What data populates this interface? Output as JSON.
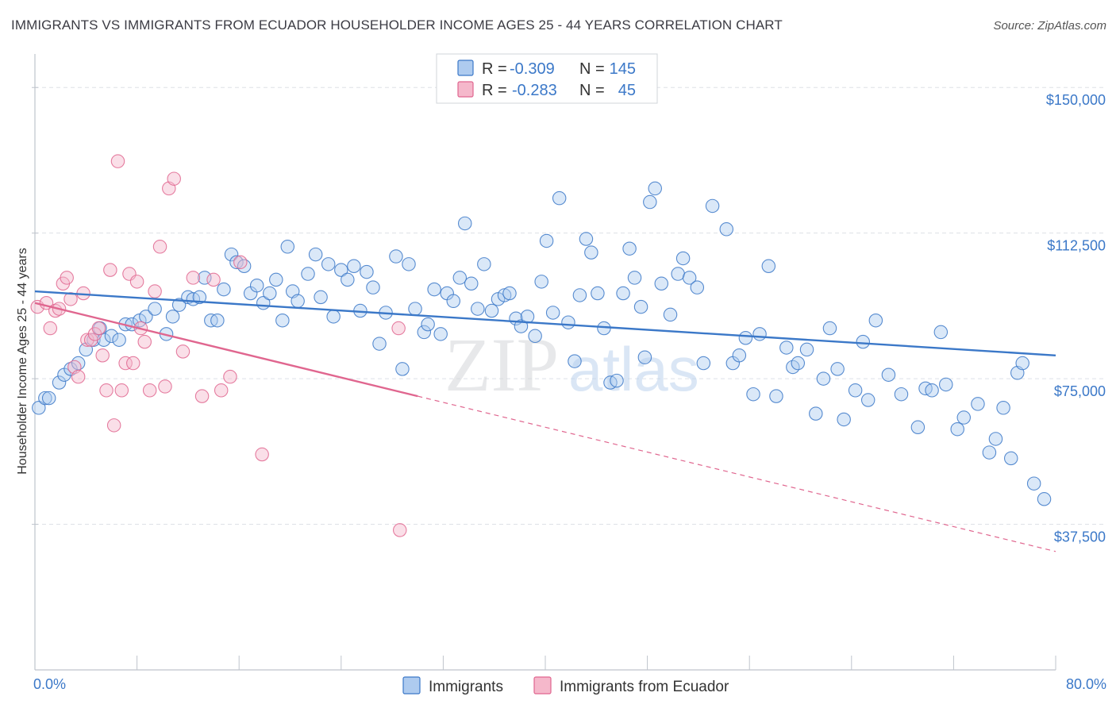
{
  "header": {
    "title": "IMMIGRANTS VS IMMIGRANTS FROM ECUADOR HOUSEHOLDER INCOME AGES 25 - 44 YEARS CORRELATION CHART",
    "source": "Source: ZipAtlas.com"
  },
  "watermark": {
    "zip": "ZIP",
    "atlas": "atlas"
  },
  "colors": {
    "blue": "#3b78c8",
    "blue_fill": "#aecbef",
    "pink": "#e0668f",
    "pink_fill": "#f5b8cb",
    "grid": "#dde1e6",
    "axis": "#bfc4cc"
  },
  "chart_data": {
    "type": "scatter",
    "title": "IMMIGRANTS VS IMMIGRANTS FROM ECUADOR HOUSEHOLDER INCOME AGES 25 - 44 YEARS CORRELATION CHART",
    "xlabel": "",
    "ylabel": "Householder Income Ages 25 - 44 years",
    "xlim": [
      0,
      80
    ],
    "ylim": [
      0,
      157000
    ],
    "x_tick_labels": [
      "0.0%",
      "80.0%"
    ],
    "y_ticks": [
      37500,
      75000,
      112500,
      150000
    ],
    "y_tick_labels": [
      "$37,500",
      "$75,000",
      "$112,500",
      "$150,000"
    ],
    "grid": true,
    "legend_position": "top-center",
    "stats": [
      {
        "r_label": "R =",
        "r": "-0.309",
        "n_label": "N =",
        "n": "145"
      },
      {
        "r_label": "R =",
        "r": "-0.283",
        "n_label": "N =",
        "n": "45"
      }
    ],
    "series": [
      {
        "name": "Immigrants",
        "color": "#3b78c8",
        "trend": {
          "x": [
            0,
            80
          ],
          "y": [
            97500,
            81000
          ],
          "dashed_to": null
        },
        "points": [
          [
            0.3,
            67500
          ],
          [
            0.8,
            70000
          ],
          [
            1.1,
            70000
          ],
          [
            1.9,
            74000
          ],
          [
            2.3,
            76000
          ],
          [
            2.8,
            77500
          ],
          [
            3.4,
            79000
          ],
          [
            4.0,
            82500
          ],
          [
            4.6,
            85000
          ],
          [
            5.1,
            88000
          ],
          [
            5.4,
            85000
          ],
          [
            6.0,
            86000
          ],
          [
            6.6,
            85000
          ],
          [
            7.1,
            89000
          ],
          [
            7.6,
            89000
          ],
          [
            8.2,
            90000
          ],
          [
            8.7,
            91000
          ],
          [
            9.4,
            93000
          ],
          [
            10.3,
            86500
          ],
          [
            10.8,
            91000
          ],
          [
            11.3,
            94000
          ],
          [
            12.0,
            96000
          ],
          [
            12.4,
            95500
          ],
          [
            12.9,
            96000
          ],
          [
            13.3,
            101000
          ],
          [
            13.8,
            90000
          ],
          [
            14.3,
            90000
          ],
          [
            14.8,
            98000
          ],
          [
            15.4,
            107000
          ],
          [
            15.8,
            105000
          ],
          [
            16.4,
            104000
          ],
          [
            16.9,
            97000
          ],
          [
            17.4,
            99000
          ],
          [
            17.9,
            94500
          ],
          [
            18.4,
            97000
          ],
          [
            18.9,
            100500
          ],
          [
            19.4,
            90000
          ],
          [
            19.8,
            109000
          ],
          [
            20.2,
            97500
          ],
          [
            20.6,
            95000
          ],
          [
            21.4,
            102000
          ],
          [
            22.0,
            107000
          ],
          [
            22.4,
            96000
          ],
          [
            23.0,
            104500
          ],
          [
            23.4,
            91000
          ],
          [
            24.0,
            103000
          ],
          [
            24.5,
            100500
          ],
          [
            25.0,
            104000
          ],
          [
            25.5,
            92500
          ],
          [
            26.0,
            102500
          ],
          [
            26.5,
            98500
          ],
          [
            27.0,
            84000
          ],
          [
            27.5,
            92000
          ],
          [
            28.3,
            106500
          ],
          [
            28.8,
            77500
          ],
          [
            29.3,
            104500
          ],
          [
            29.8,
            93000
          ],
          [
            30.5,
            87000
          ],
          [
            30.8,
            89000
          ],
          [
            31.3,
            98000
          ],
          [
            31.8,
            86500
          ],
          [
            32.3,
            97000
          ],
          [
            32.8,
            95000
          ],
          [
            33.3,
            101000
          ],
          [
            33.7,
            115000
          ],
          [
            34.2,
            99500
          ],
          [
            34.7,
            93000
          ],
          [
            35.2,
            104500
          ],
          [
            35.8,
            92500
          ],
          [
            36.3,
            95500
          ],
          [
            36.8,
            96500
          ],
          [
            37.2,
            97000
          ],
          [
            37.7,
            90500
          ],
          [
            38.1,
            88500
          ],
          [
            38.6,
            91000
          ],
          [
            39.2,
            86000
          ],
          [
            39.7,
            100000
          ],
          [
            40.1,
            110500
          ],
          [
            40.6,
            92000
          ],
          [
            41.1,
            121500
          ],
          [
            41.8,
            89500
          ],
          [
            42.3,
            79500
          ],
          [
            42.7,
            96500
          ],
          [
            43.2,
            111000
          ],
          [
            43.6,
            107500
          ],
          [
            44.1,
            97000
          ],
          [
            44.6,
            88000
          ],
          [
            45.1,
            74000
          ],
          [
            45.6,
            74500
          ],
          [
            46.1,
            97000
          ],
          [
            46.6,
            108500
          ],
          [
            47.0,
            101000
          ],
          [
            47.5,
            93500
          ],
          [
            47.8,
            80500
          ],
          [
            48.2,
            120500
          ],
          [
            48.6,
            124000
          ],
          [
            49.1,
            99500
          ],
          [
            49.8,
            91500
          ],
          [
            50.4,
            102000
          ],
          [
            50.8,
            106000
          ],
          [
            51.3,
            101000
          ],
          [
            51.9,
            98500
          ],
          [
            52.4,
            79000
          ],
          [
            53.1,
            119500
          ],
          [
            54.2,
            113500
          ],
          [
            54.7,
            79000
          ],
          [
            55.2,
            81000
          ],
          [
            55.7,
            85500
          ],
          [
            56.3,
            71000
          ],
          [
            56.8,
            86500
          ],
          [
            57.5,
            104000
          ],
          [
            58.1,
            70500
          ],
          [
            58.9,
            83000
          ],
          [
            59.4,
            78000
          ],
          [
            59.8,
            79000
          ],
          [
            60.5,
            82500
          ],
          [
            61.2,
            66000
          ],
          [
            61.8,
            75000
          ],
          [
            62.3,
            88000
          ],
          [
            62.9,
            77500
          ],
          [
            63.4,
            64500
          ],
          [
            64.3,
            72000
          ],
          [
            64.9,
            84500
          ],
          [
            65.3,
            69500
          ],
          [
            65.9,
            90000
          ],
          [
            66.9,
            76000
          ],
          [
            67.9,
            71000
          ],
          [
            69.2,
            62500
          ],
          [
            69.8,
            72500
          ],
          [
            70.3,
            72000
          ],
          [
            71.0,
            87000
          ],
          [
            71.4,
            73500
          ],
          [
            72.3,
            62000
          ],
          [
            72.8,
            65000
          ],
          [
            73.9,
            68500
          ],
          [
            74.8,
            56000
          ],
          [
            75.3,
            59500
          ],
          [
            75.9,
            67500
          ],
          [
            76.5,
            54500
          ],
          [
            77.0,
            76500
          ],
          [
            77.4,
            79000
          ],
          [
            78.3,
            48000
          ],
          [
            79.1,
            44000
          ]
        ]
      },
      {
        "name": "Immigrants from Ecuador",
        "color": "#e0668f",
        "trend": {
          "x": [
            0,
            30
          ],
          "y": [
            94500,
            70500
          ],
          "dashed_to": [
            80,
            30500
          ]
        },
        "points": [
          [
            0.2,
            93500
          ],
          [
            0.9,
            94500
          ],
          [
            1.2,
            88000
          ],
          [
            1.6,
            92500
          ],
          [
            1.9,
            93000
          ],
          [
            2.2,
            99500
          ],
          [
            2.5,
            101000
          ],
          [
            2.8,
            95500
          ],
          [
            3.1,
            78000
          ],
          [
            3.4,
            75500
          ],
          [
            3.8,
            97000
          ],
          [
            4.1,
            85000
          ],
          [
            4.4,
            85000
          ],
          [
            4.7,
            86500
          ],
          [
            5.0,
            88000
          ],
          [
            5.3,
            81000
          ],
          [
            5.6,
            72000
          ],
          [
            5.9,
            103000
          ],
          [
            6.2,
            63000
          ],
          [
            6.5,
            131000
          ],
          [
            6.8,
            72000
          ],
          [
            7.1,
            79000
          ],
          [
            7.4,
            102000
          ],
          [
            7.7,
            79000
          ],
          [
            8.0,
            100000
          ],
          [
            8.3,
            88000
          ],
          [
            8.6,
            84500
          ],
          [
            9.0,
            72000
          ],
          [
            9.4,
            97500
          ],
          [
            9.8,
            109000
          ],
          [
            10.2,
            73000
          ],
          [
            10.5,
            124000
          ],
          [
            10.9,
            126500
          ],
          [
            11.6,
            82000
          ],
          [
            12.4,
            101000
          ],
          [
            13.1,
            70500
          ],
          [
            14.0,
            100500
          ],
          [
            14.6,
            72000
          ],
          [
            15.3,
            75500
          ],
          [
            16.1,
            105000
          ],
          [
            17.8,
            55500
          ],
          [
            28.5,
            88000
          ],
          [
            28.6,
            36000
          ]
        ]
      }
    ]
  },
  "bottom_legend": {
    "items": [
      {
        "label": "Immigrants"
      },
      {
        "label": "Immigrants from Ecuador"
      }
    ]
  }
}
